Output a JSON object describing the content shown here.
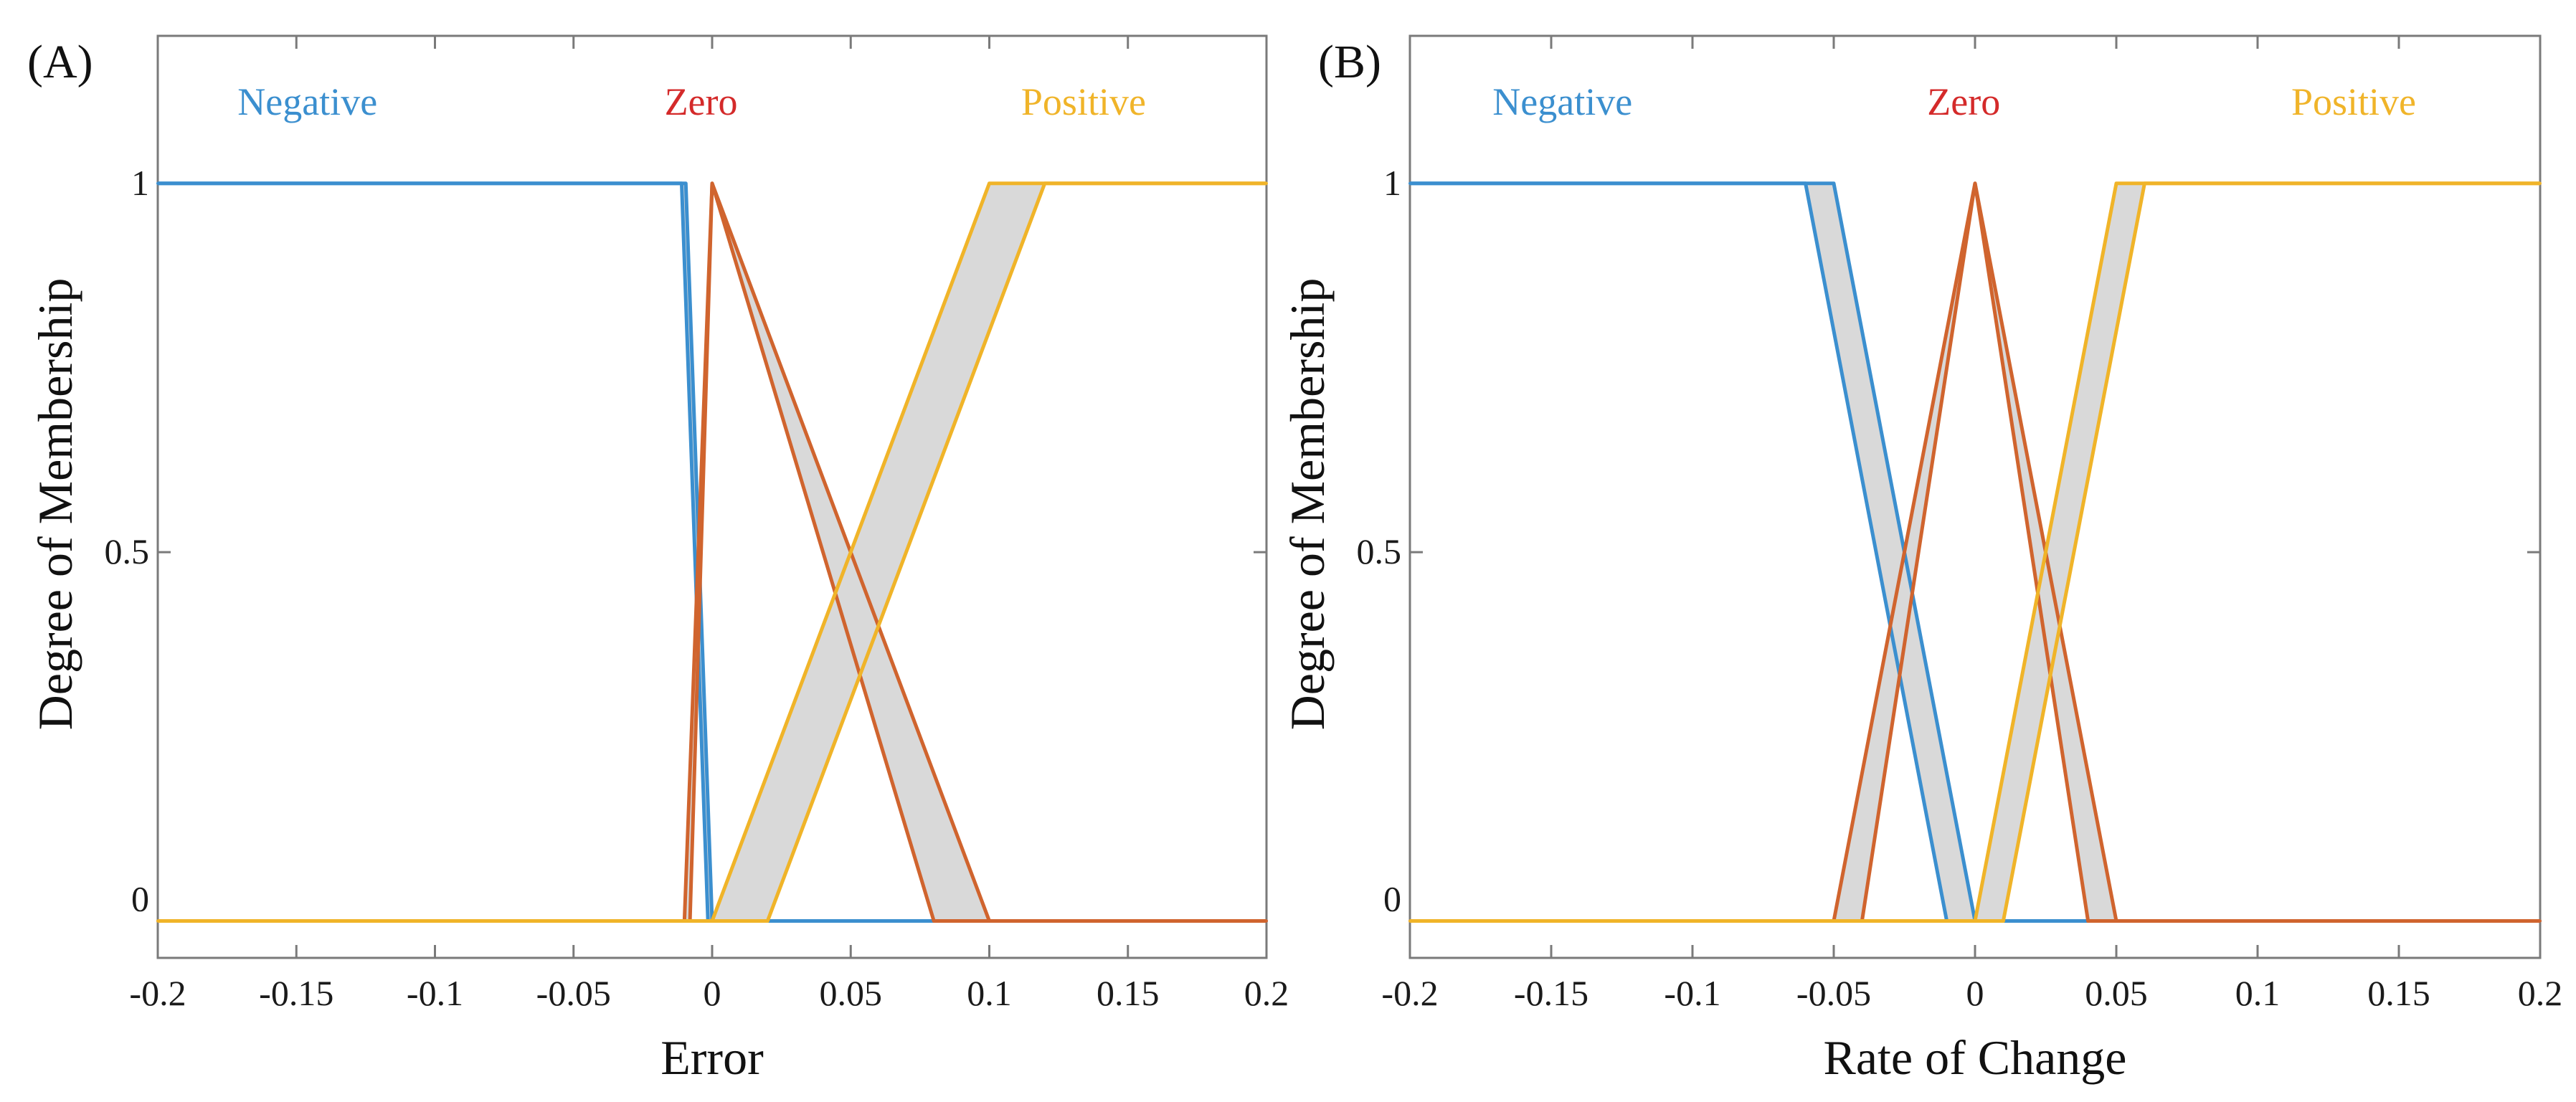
{
  "chart_data": [
    {
      "type": "line",
      "panel_label": "(A)",
      "xlabel": "Error",
      "ylabel": "Degree of Membership",
      "xlim": [
        -0.2,
        0.2
      ],
      "ylim": [
        -0.05,
        1.2
      ],
      "xticks": [
        "-0.2",
        "-0.15",
        "-0.1",
        "-0.05",
        "0",
        "0.05",
        "0.1",
        "0.15",
        "0.2"
      ],
      "yticks": [
        {
          "value": 1,
          "label": "1"
        },
        {
          "value": 0.5,
          "label": "0.5"
        },
        {
          "value": 0,
          "label": "0"
        }
      ],
      "legend_position": "top",
      "series": [
        {
          "name": "Negative",
          "color": "#3b8fcf",
          "band_upper": [
            [
              -0.2,
              1
            ],
            [
              -0.0095,
              1
            ],
            [
              0,
              0
            ],
            [
              0.2,
              0
            ]
          ],
          "band_lower": [
            [
              -0.2,
              1
            ],
            [
              -0.011,
              1
            ],
            [
              -0.0015,
              0
            ],
            [
              0.2,
              0
            ]
          ]
        },
        {
          "name": "Zero",
          "color": "#d0642e",
          "band_upper": [
            [
              -0.2,
              0
            ],
            [
              -0.01,
              0
            ],
            [
              0,
              1
            ],
            [
              0.1,
              0
            ],
            [
              0.2,
              0
            ]
          ],
          "band_lower": [
            [
              -0.2,
              0
            ],
            [
              -0.008,
              0
            ],
            [
              0,
              1
            ],
            [
              0.08,
              0
            ],
            [
              0.2,
              0
            ]
          ]
        },
        {
          "name": "Positive",
          "color": "#f0b429",
          "band_upper": [
            [
              -0.2,
              0
            ],
            [
              0,
              0
            ],
            [
              0.1,
              1
            ],
            [
              0.2,
              1
            ]
          ],
          "band_lower": [
            [
              -0.2,
              0
            ],
            [
              0.02,
              0
            ],
            [
              0.12,
              1
            ],
            [
              0.2,
              1
            ]
          ]
        }
      ]
    },
    {
      "type": "line",
      "panel_label": "(B)",
      "xlabel": "Rate of Change",
      "ylabel": "Degree of Membership",
      "xlim": [
        -0.2,
        0.2
      ],
      "ylim": [
        -0.05,
        1.2
      ],
      "xticks": [
        "-0.2",
        "-0.15",
        "-0.1",
        "-0.05",
        "0",
        "0.05",
        "0.1",
        "0.15",
        "0.2"
      ],
      "yticks": [
        {
          "value": 1,
          "label": "1"
        },
        {
          "value": 0.5,
          "label": "0.5"
        },
        {
          "value": 0,
          "label": "0"
        }
      ],
      "legend_position": "top",
      "series": [
        {
          "name": "Negative",
          "color": "#3b8fcf",
          "band_upper": [
            [
              -0.2,
              1
            ],
            [
              -0.05,
              1
            ],
            [
              0,
              0
            ],
            [
              0.2,
              0
            ]
          ],
          "band_lower": [
            [
              -0.2,
              1
            ],
            [
              -0.06,
              1
            ],
            [
              -0.01,
              0
            ],
            [
              0.2,
              0
            ]
          ]
        },
        {
          "name": "Zero",
          "color": "#d0642e",
          "band_upper": [
            [
              -0.2,
              0
            ],
            [
              -0.05,
              0
            ],
            [
              0,
              1
            ],
            [
              0.05,
              0
            ],
            [
              0.2,
              0
            ]
          ],
          "band_lower": [
            [
              -0.2,
              0
            ],
            [
              -0.04,
              0
            ],
            [
              0,
              1
            ],
            [
              0.04,
              0
            ],
            [
              0.2,
              0
            ]
          ]
        },
        {
          "name": "Positive",
          "color": "#f0b429",
          "band_upper": [
            [
              -0.2,
              0
            ],
            [
              0,
              0
            ],
            [
              0.05,
              1
            ],
            [
              0.2,
              1
            ]
          ],
          "band_lower": [
            [
              -0.2,
              0
            ],
            [
              0.01,
              0
            ],
            [
              0.06,
              1
            ],
            [
              0.2,
              1
            ]
          ]
        }
      ]
    }
  ],
  "colors": {
    "negative": "#3b8fcf",
    "zero": "#d0642e",
    "zero_label": "#d42a2a",
    "positive": "#f0b429",
    "band_fill": "#d9d9d9",
    "frame": "#7a7a7a"
  }
}
